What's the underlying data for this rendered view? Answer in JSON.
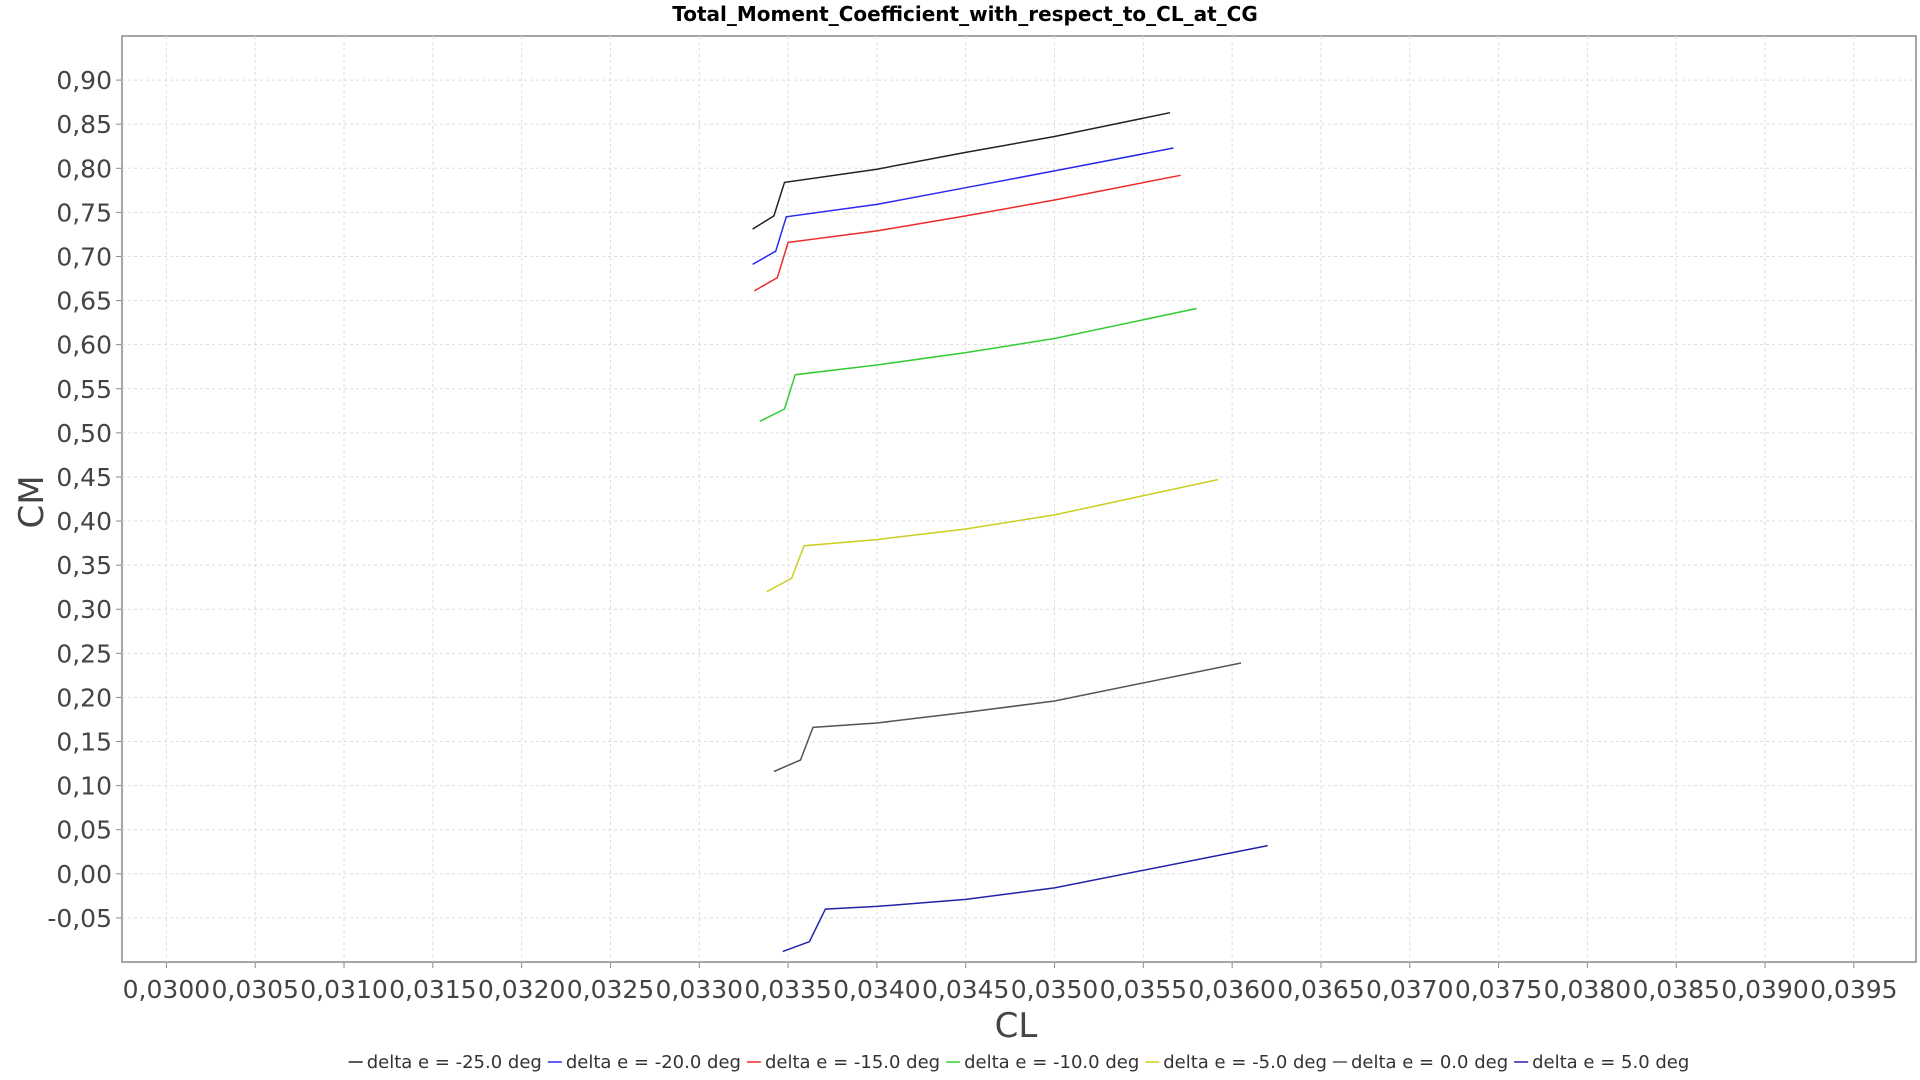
{
  "chart_data": {
    "type": "line",
    "title": "Total_Moment_Coefficient_with_respect_to_CL_at_CG",
    "xlabel": "CL",
    "ylabel": "CM",
    "xlim": [
      0.02975,
      0.03985
    ],
    "ylim": [
      -0.1,
      0.95
    ],
    "x_ticks": [
      0.03,
      0.0305,
      0.031,
      0.0315,
      0.032,
      0.0325,
      0.033,
      0.0335,
      0.034,
      0.0345,
      0.035,
      0.0355,
      0.036,
      0.0365,
      0.037,
      0.0375,
      0.038,
      0.0385,
      0.039,
      0.0395
    ],
    "x_tick_labels": [
      "0,0300",
      "0,0305",
      "0,0310",
      "0,0315",
      "0,0320",
      "0,0325",
      "0,0330",
      "0,0335",
      "0,0340",
      "0,0345",
      "0,0350",
      "0,0355",
      "0,0360",
      "0,0365",
      "0,0370",
      "0,0375",
      "0,0380",
      "0,0385",
      "0,0390",
      "0,0395"
    ],
    "y_ticks": [
      -0.05,
      0.0,
      0.05,
      0.1,
      0.15,
      0.2,
      0.25,
      0.3,
      0.35,
      0.4,
      0.45,
      0.5,
      0.55,
      0.6,
      0.65,
      0.7,
      0.75,
      0.8,
      0.85,
      0.9
    ],
    "y_tick_labels": [
      "-0,05",
      "0,00",
      "0,05",
      "0,10",
      "0,15",
      "0,20",
      "0,25",
      "0,30",
      "0,35",
      "0,40",
      "0,45",
      "0,50",
      "0,55",
      "0,60",
      "0,65",
      "0,70",
      "0,75",
      "0,80",
      "0,85",
      "0,90"
    ],
    "grid": true,
    "legend_position": "bottom",
    "series": [
      {
        "name": "delta e = -25.0 deg",
        "color": "#222222",
        "x": [
          0.0333,
          0.03342,
          0.03348,
          0.034,
          0.0345,
          0.035,
          0.03565
        ],
        "y": [
          0.731,
          0.746,
          0.784,
          0.799,
          0.818,
          0.836,
          0.863
        ]
      },
      {
        "name": "delta e = -20.0 deg",
        "color": "#2a2aee",
        "x": [
          0.0333,
          0.03343,
          0.03349,
          0.034,
          0.0345,
          0.035,
          0.03567
        ],
        "y": [
          0.691,
          0.706,
          0.745,
          0.759,
          0.778,
          0.797,
          0.823
        ]
      },
      {
        "name": "delta e = -15.0 deg",
        "color": "#ee2a2a",
        "x": [
          0.03331,
          0.03344,
          0.0335,
          0.034,
          0.0345,
          0.035,
          0.03571
        ],
        "y": [
          0.661,
          0.676,
          0.716,
          0.729,
          0.746,
          0.764,
          0.792
        ]
      },
      {
        "name": "delta e = -10.0 deg",
        "color": "#33cc33",
        "x": [
          0.03334,
          0.03348,
          0.03354,
          0.034,
          0.0345,
          0.035,
          0.0358
        ],
        "y": [
          0.513,
          0.527,
          0.566,
          0.577,
          0.591,
          0.607,
          0.641
        ]
      },
      {
        "name": "delta e = -5.0 deg",
        "color": "#cccc22",
        "x": [
          0.03338,
          0.03352,
          0.03359,
          0.034,
          0.0345,
          0.035,
          0.03592
        ],
        "y": [
          0.32,
          0.335,
          0.372,
          0.379,
          0.391,
          0.407,
          0.447
        ]
      },
      {
        "name": "delta e = 0.0 deg",
        "color": "#555555",
        "x": [
          0.03342,
          0.03357,
          0.03364,
          0.034,
          0.0345,
          0.035,
          0.03605
        ],
        "y": [
          0.116,
          0.129,
          0.166,
          0.171,
          0.183,
          0.196,
          0.239
        ]
      },
      {
        "name": "delta e = 5.0 deg",
        "color": "#2222aa",
        "x": [
          0.03347,
          0.03362,
          0.03371,
          0.034,
          0.0345,
          0.035,
          0.0362
        ],
        "y": [
          -0.088,
          -0.077,
          -0.04,
          -0.037,
          -0.029,
          -0.016,
          0.032
        ]
      }
    ]
  }
}
